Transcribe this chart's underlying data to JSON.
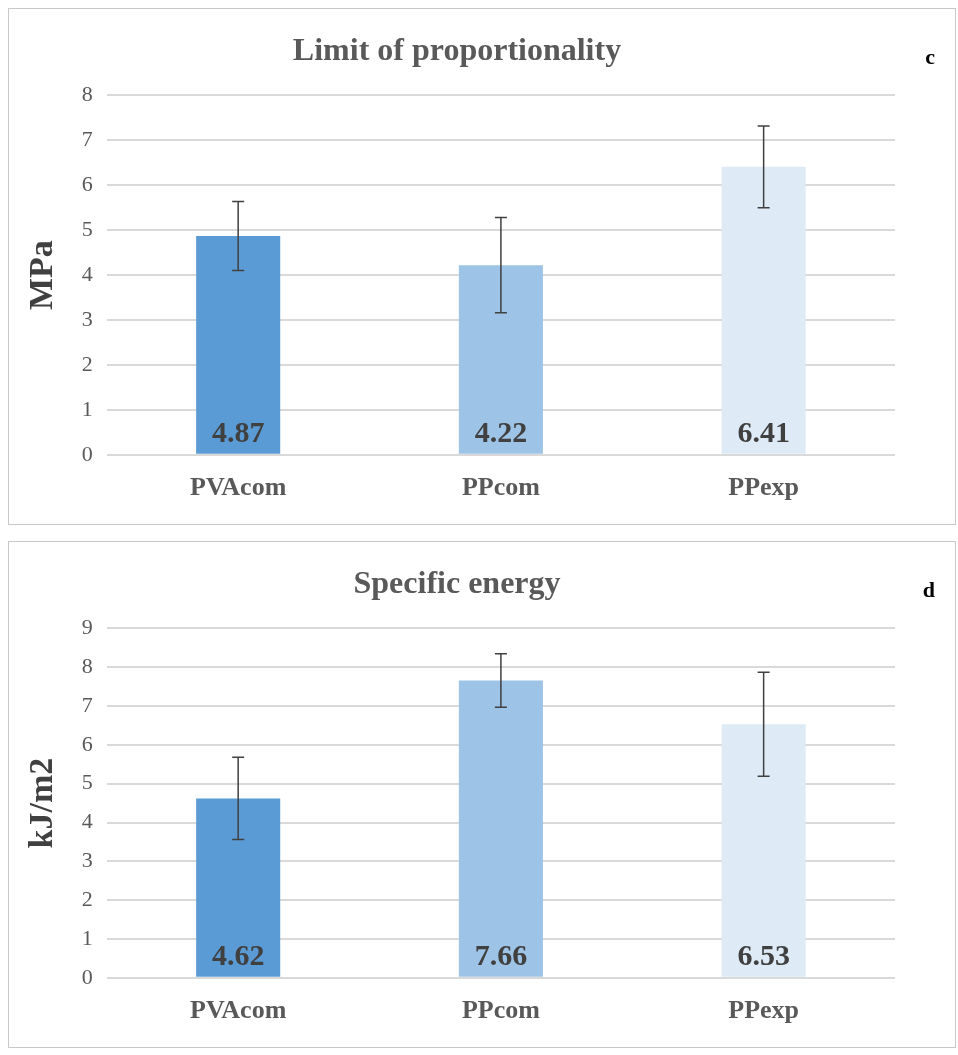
{
  "chart_data": [
    {
      "type": "bar",
      "title": "Limit of proportionality",
      "ylabel": "MPa",
      "annotations": [
        "c"
      ],
      "categories": [
        "PVAcom",
        "PPcom",
        "PPexp"
      ],
      "values": [
        4.87,
        4.22,
        6.41
      ],
      "colors": [
        "#5b9bd5",
        "#9dc3e6",
        "#deebf7"
      ],
      "errors": [
        0.77,
        1.06,
        0.91
      ],
      "ylim": [
        0,
        8
      ],
      "yticks": [
        0,
        1,
        2,
        3,
        4,
        5,
        6,
        7,
        8
      ],
      "grid": "y",
      "legend": false,
      "data_labels": true
    },
    {
      "type": "bar",
      "title": "Specific energy",
      "ylabel": "kJ/m2",
      "annotations": [
        "d"
      ],
      "categories": [
        "PVAcom",
        "PPcom",
        "PPexp"
      ],
      "values": [
        4.62,
        7.66,
        6.53
      ],
      "colors": [
        "#5b9bd5",
        "#9dc3e6",
        "#deebf7"
      ],
      "errors": [
        1.06,
        0.69,
        1.34
      ],
      "ylim": [
        0,
        9
      ],
      "yticks": [
        0,
        1,
        2,
        3,
        4,
        5,
        6,
        7,
        8,
        9
      ],
      "grid": "y",
      "legend": false,
      "data_labels": true
    }
  ]
}
